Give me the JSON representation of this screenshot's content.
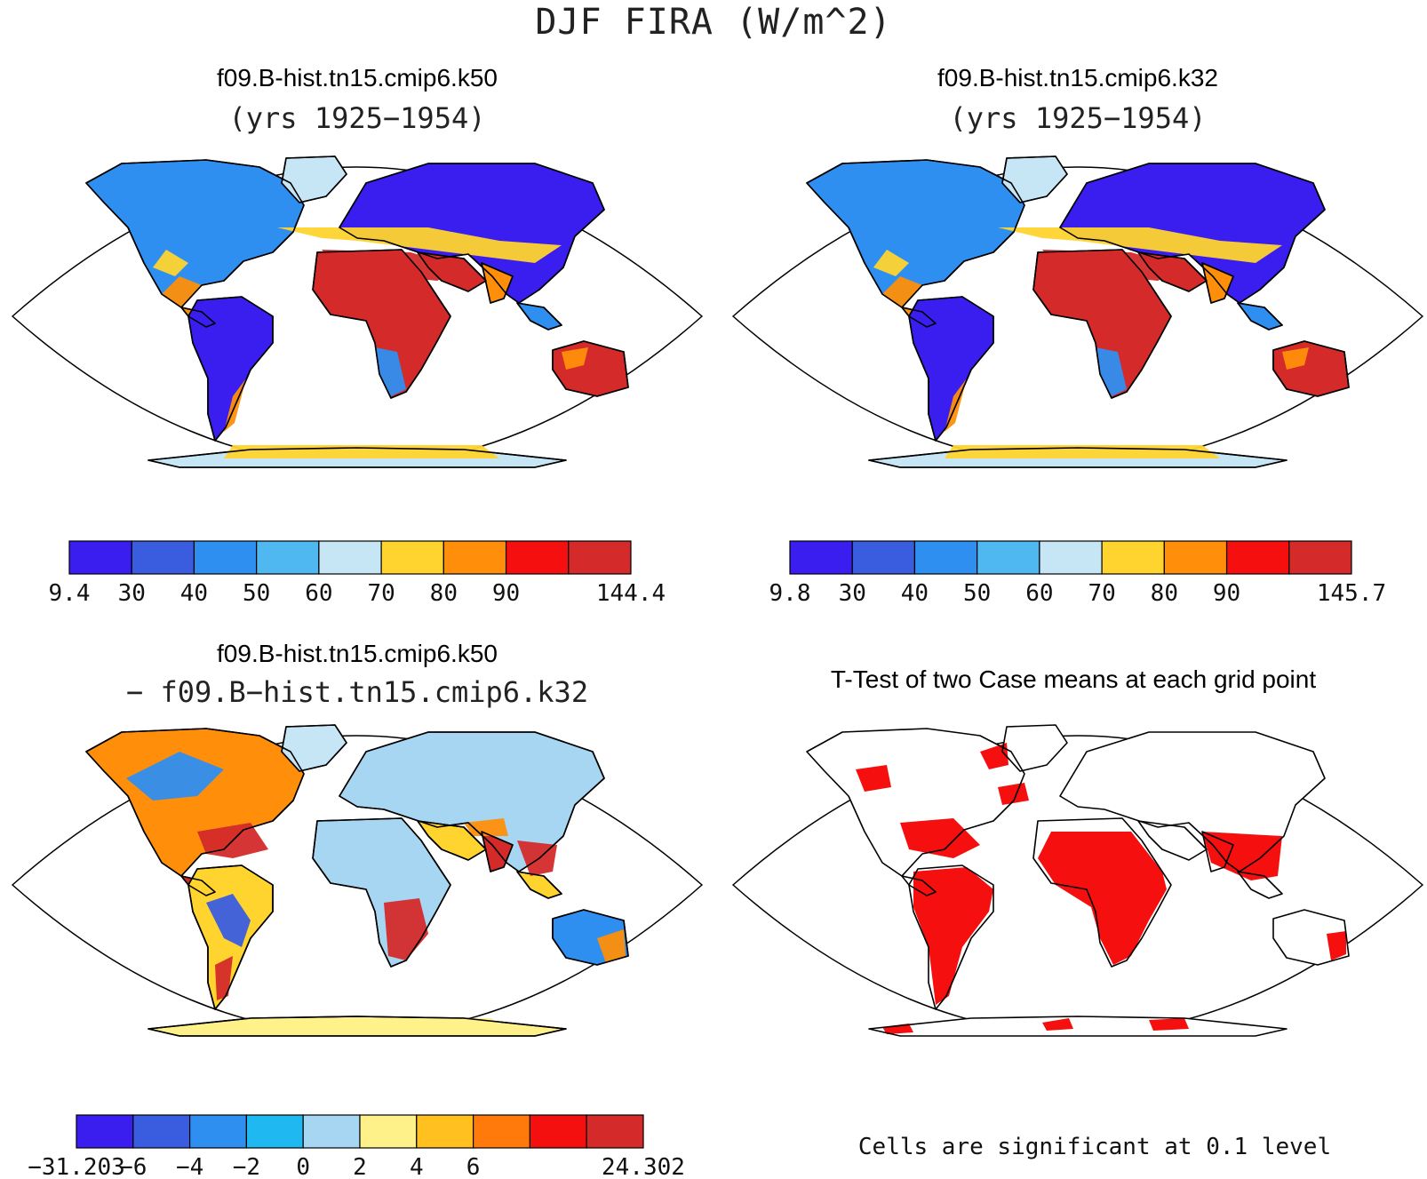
{
  "page": {
    "title": "DJF FIRA (W/m^2)",
    "footnote": "Cells are significant at 0.1 level"
  },
  "panels": [
    {
      "id": "k50",
      "title": "f09.B-hist.tn15.cmip6.k50",
      "subtitle": "(yrs 1925−1954)",
      "colorbar": {
        "colors": [
          "#3a1ef0",
          "#3a5de0",
          "#2f8ff0",
          "#4fb8f0",
          "#c6e6f6",
          "#ffd42e",
          "#ff8f0a",
          "#f50f0f",
          "#d42a2a"
        ],
        "labels": [
          "9.4",
          "30",
          "40",
          "50",
          "60",
          "70",
          "80",
          "90",
          "144.4"
        ]
      }
    },
    {
      "id": "k32",
      "title": "f09.B-hist.tn15.cmip6.k32",
      "subtitle": "(yrs 1925−1954)",
      "colorbar": {
        "colors": [
          "#3a1ef0",
          "#3a5de0",
          "#2f8ff0",
          "#4fb8f0",
          "#c6e6f6",
          "#ffd42e",
          "#ff8f0a",
          "#f50f0f",
          "#d42a2a"
        ],
        "labels": [
          "9.8",
          "30",
          "40",
          "50",
          "60",
          "70",
          "80",
          "90",
          "145.7"
        ]
      }
    },
    {
      "id": "diff",
      "title": "f09.B-hist.tn15.cmip6.k50",
      "subtitle": "− f09.B−hist.tn15.cmip6.k32",
      "colorbar": {
        "colors": [
          "#3a1ef0",
          "#3a5de0",
          "#2f8ff0",
          "#20b8f0",
          "#a6d6f2",
          "#fff18a",
          "#ffc020",
          "#ff7a0a",
          "#f51010",
          "#d42a2a"
        ],
        "labels": [
          "−31.203",
          "−6",
          "−4",
          "−2",
          "0",
          "2",
          "4",
          "6",
          "24.302"
        ]
      }
    },
    {
      "id": "ttest",
      "title": "T-Test of two Case means at each grid point",
      "significance_color": "#f50f0f"
    }
  ],
  "map_colors": {
    "cold": "#3a1ef0",
    "blue": "#2f8ff0",
    "light": "#c6e6f6",
    "yellow": "#ffd42e",
    "orange": "#ff8f0a",
    "red": "#d42a2a",
    "coast": "#000000"
  }
}
